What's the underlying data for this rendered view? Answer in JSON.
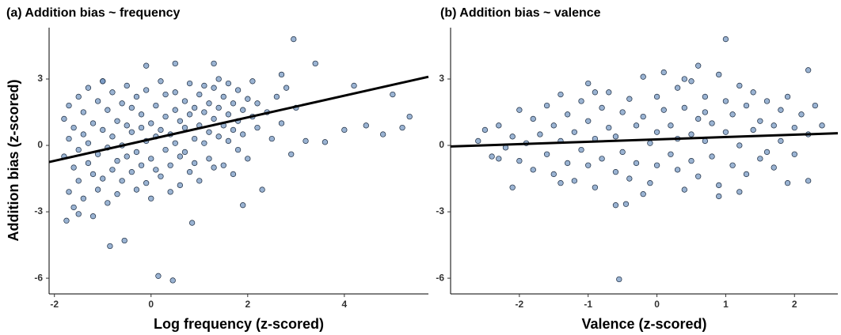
{
  "chart_data": [
    {
      "type": "scatter",
      "title": "(a) Addition bias ~ frequency",
      "x_label": "Log frequency (z-scored)",
      "y_label": "Addition bias (z-scored)",
      "xlim": [
        -2.11,
        5.74
      ],
      "xticks": [
        -2,
        0,
        2,
        4
      ],
      "ylim": [
        -6.71,
        5.32
      ],
      "yticks": [
        -6,
        -3,
        0,
        3
      ],
      "grid": false,
      "series": [
        {
          "color": "#6f93bf",
          "x": [
            -1.8,
            -1.8,
            -1.7,
            -1.7,
            -1.7,
            -1.6,
            -1.6,
            -1.6,
            -1.5,
            -1.5,
            -1.5,
            -1.4,
            -1.4,
            -1.4,
            -1.3,
            -1.3,
            -1.3,
            -1.2,
            -1.2,
            -1.2,
            -1.1,
            -1.1,
            -1.1,
            -1.0,
            -1.0,
            -1.0,
            -0.9,
            -0.9,
            -0.9,
            -0.8,
            -0.8,
            -0.8,
            -0.7,
            -0.7,
            -0.7,
            -0.6,
            -0.6,
            -0.6,
            -0.5,
            -0.5,
            -0.5,
            -0.4,
            -0.4,
            -0.4,
            -0.3,
            -0.3,
            -0.3,
            -0.2,
            -0.2,
            -0.2,
            -0.1,
            -0.1,
            -0.1,
            0.0,
            0.0,
            0.0,
            0.1,
            0.1,
            0.1,
            0.2,
            0.2,
            0.2,
            0.3,
            0.3,
            0.3,
            0.4,
            0.4,
            0.4,
            0.5,
            0.5,
            0.5,
            0.6,
            0.6,
            0.6,
            0.7,
            0.7,
            0.7,
            0.8,
            0.8,
            0.8,
            0.9,
            0.9,
            0.9,
            1.0,
            1.0,
            1.0,
            1.1,
            1.1,
            1.1,
            1.2,
            1.2,
            1.2,
            1.3,
            1.3,
            1.3,
            1.4,
            1.4,
            1.4,
            1.5,
            1.5,
            1.5,
            1.6,
            1.6,
            1.6,
            1.7,
            1.7,
            1.7,
            1.8,
            1.8,
            1.8,
            1.9,
            1.9,
            2.0,
            2.0,
            2.1,
            2.1,
            2.2,
            2.2,
            2.3,
            2.4,
            2.5,
            2.6,
            2.7,
            2.8,
            2.9,
            3.0,
            2.95,
            3.2,
            3.4,
            3.6,
            4.0,
            4.2,
            4.45,
            4.8,
            5.0,
            5.2,
            5.35,
            0.15,
            0.45,
            -0.85,
            -0.55,
            -0.1,
            0.5,
            1.3,
            0.85,
            -1.75,
            1.9,
            -1.5,
            -1.0,
            2.7
          ],
          "y": [
            -0.5,
            1.2,
            -2.1,
            0.3,
            1.8,
            -1.0,
            0.8,
            -2.8,
            2.2,
            -0.2,
            -1.6,
            0.5,
            -2.4,
            1.5,
            -0.8,
            2.6,
            0.1,
            -3.2,
            1.0,
            -1.3,
            2.0,
            -0.4,
            -2.0,
            0.7,
            2.9,
            -1.5,
            -0.1,
            1.6,
            -2.6,
            0.4,
            -1.1,
            2.4,
            1.1,
            -0.7,
            -2.2,
            0.0,
            1.9,
            -1.6,
            0.9,
            -0.5,
            2.7,
            -1.2,
            0.6,
            1.7,
            -0.3,
            2.2,
            -2.0,
            0.8,
            -0.9,
            1.4,
            0.2,
            -1.7,
            2.5,
            1.0,
            -0.6,
            -2.4,
            0.4,
            1.8,
            -1.1,
            0.7,
            2.9,
            -1.4,
            -0.2,
            1.3,
            2.3,
            0.5,
            -0.9,
            -2.1,
            1.6,
            0.1,
            2.4,
            -0.5,
            1.1,
            -1.8,
            0.8,
            2.0,
            -0.3,
            1.4,
            -1.2,
            2.8,
            0.3,
            1.7,
            -0.8,
            0.9,
            2.3,
            -1.6,
            1.5,
            0.1,
            2.7,
            0.6,
            1.9,
            -0.6,
            1.2,
            2.6,
            -1.0,
            0.4,
            1.7,
            3.0,
            0.9,
            2.2,
            -0.9,
            1.4,
            0.2,
            2.8,
            0.7,
            1.9,
            -1.3,
            1.1,
            2.5,
            -0.2,
            1.6,
            0.5,
            2.1,
            -0.6,
            1.3,
            2.9,
            0.8,
            1.9,
            -2.0,
            1.5,
            0.3,
            2.2,
            1.0,
            2.6,
            -0.4,
            1.7,
            4.8,
            0.2,
            3.7,
            0.15,
            0.7,
            2.7,
            0.9,
            0.5,
            2.3,
            0.8,
            1.3,
            -5.9,
            -6.1,
            -4.55,
            -4.3,
            3.6,
            3.7,
            3.7,
            -3.5,
            -3.4,
            -2.7,
            -3.1,
            2.9,
            3.2
          ]
        }
      ],
      "fit": {
        "color": "#000000",
        "x": [
          -2.11,
          5.74
        ],
        "y": [
          -0.75,
          3.1
        ]
      }
    },
    {
      "type": "scatter",
      "title": "(b) Addition bias ~ valence",
      "x_label": "Valence (z-scored)",
      "xlim": [
        -3.0,
        2.63
      ],
      "xticks": [
        -2,
        -1,
        0,
        1,
        2
      ],
      "ylim": [
        -6.71,
        5.32
      ],
      "yticks": [
        -6,
        -3,
        0,
        3
      ],
      "grid": false,
      "series": [
        {
          "color": "#6f93bf",
          "x": [
            -2.6,
            -2.5,
            -2.4,
            -2.3,
            -2.2,
            -2.1,
            -2.0,
            -2.0,
            -1.9,
            -1.8,
            -1.8,
            -1.7,
            -1.6,
            -1.6,
            -1.5,
            -1.5,
            -1.4,
            -1.4,
            -1.3,
            -1.3,
            -1.2,
            -1.2,
            -1.1,
            -1.1,
            -1.0,
            -1.0,
            -1.0,
            -0.9,
            -0.9,
            -0.8,
            -0.8,
            -0.7,
            -0.7,
            -0.6,
            -0.6,
            -0.5,
            -0.5,
            -0.4,
            -0.4,
            -0.3,
            -0.3,
            -0.2,
            -0.2,
            -0.1,
            -0.1,
            0.0,
            0.0,
            0.0,
            0.1,
            0.1,
            0.2,
            0.2,
            0.3,
            0.3,
            0.3,
            0.4,
            0.4,
            0.5,
            0.5,
            0.5,
            0.6,
            0.6,
            0.6,
            0.7,
            0.7,
            0.8,
            0.8,
            0.9,
            0.9,
            1.0,
            1.0,
            1.1,
            1.1,
            1.2,
            1.2,
            1.3,
            1.3,
            1.4,
            1.4,
            1.5,
            1.5,
            1.6,
            1.6,
            1.7,
            1.7,
            1.8,
            1.8,
            1.9,
            2.0,
            2.0,
            2.1,
            2.2,
            2.3,
            2.4,
            1.0,
            -0.55,
            2.2,
            -0.6,
            -0.45,
            2.2,
            -2.1,
            -1.4,
            0.9,
            1.2,
            -0.2,
            0.4,
            1.9,
            -2.3,
            -0.9,
            0.7
          ],
          "y": [
            0.2,
            0.7,
            -0.5,
            0.9,
            -0.1,
            0.4,
            1.6,
            -0.7,
            0.1,
            1.2,
            -1.1,
            0.5,
            1.8,
            -0.4,
            0.9,
            -1.3,
            2.3,
            0.2,
            -0.8,
            1.4,
            0.6,
            -1.6,
            2.0,
            -0.2,
            1.1,
            -0.9,
            2.8,
            0.3,
            -1.9,
            1.7,
            -0.6,
            0.8,
            2.4,
            -1.2,
            0.4,
            1.5,
            -0.3,
            2.1,
            -1.5,
            0.9,
            -0.8,
            1.3,
            3.1,
            0.1,
            -1.7,
            2.2,
            0.6,
            -0.9,
            1.6,
            3.3,
            -0.4,
            0.9,
            2.6,
            -1.1,
            0.3,
            1.7,
            -2.0,
            0.5,
            2.9,
            -0.7,
            1.2,
            3.6,
            -1.4,
            0.2,
            2.2,
            -0.5,
            1.0,
            3.2,
            -1.8,
            0.6,
            2.0,
            -0.9,
            1.4,
            2.7,
            0.0,
            -1.3,
            1.8,
            0.7,
            2.4,
            -0.6,
            1.1,
            2.0,
            -0.3,
            0.9,
            -1.0,
            1.6,
            0.2,
            2.2,
            0.8,
            -0.4,
            1.4,
            0.5,
            1.8,
            0.9,
            4.8,
            -6.05,
            3.4,
            -2.7,
            -2.65,
            -1.6,
            -1.9,
            -1.7,
            -2.3,
            -2.1,
            -2.2,
            3.0,
            -1.7,
            -0.6,
            2.4,
            1.5
          ]
        }
      ],
      "fit": {
        "color": "#000000",
        "x": [
          -3.0,
          2.63
        ],
        "y": [
          -0.05,
          0.55
        ]
      }
    }
  ]
}
